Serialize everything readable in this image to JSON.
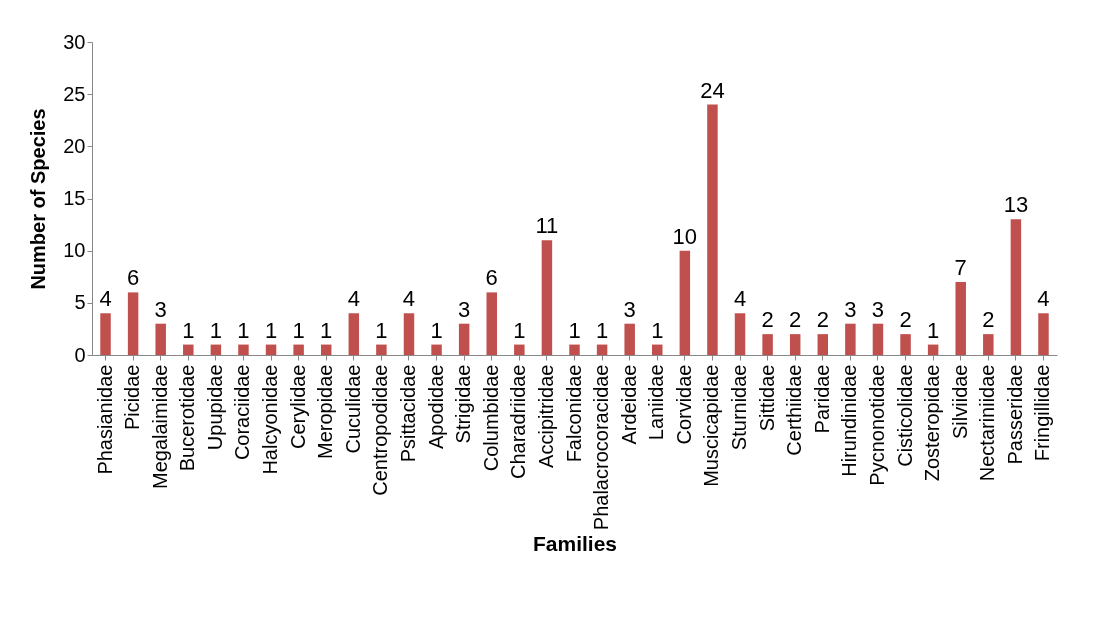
{
  "chart_data": {
    "type": "bar",
    "xlabel": "Families",
    "ylabel": "Number of Species",
    "categories": [
      "Phasianidae",
      "Picidae",
      "Megalaimidae",
      "Bucerotidae",
      "Upupidae",
      "Coraciidae",
      "Halcyonidae",
      "Cerylidae",
      "Meropidae",
      "Cuculidae",
      "Centropodidae",
      "Psittacidae",
      "Apodidae",
      "Strigidae",
      "Columbidae",
      "Charadriidae",
      "Accipitridae",
      "Falconidae",
      "Phalacrocoracidae",
      "Ardeidae",
      "Laniidae",
      "Corvidae",
      "Muscicapidae",
      "Sturnidae",
      "Sittidae",
      "Certhiidae",
      "Paridae",
      "Hirundinidae",
      "Pycnonotidae",
      "Cisticolidae",
      "Zosteropidae",
      "Silviidae",
      "Nectariniidae",
      "Passeridae",
      "Fringillidae"
    ],
    "values": [
      4,
      6,
      3,
      1,
      1,
      1,
      1,
      1,
      1,
      4,
      1,
      4,
      1,
      3,
      6,
      1,
      11,
      1,
      1,
      3,
      1,
      10,
      24,
      4,
      2,
      2,
      2,
      3,
      3,
      2,
      1,
      7,
      2,
      13,
      4
    ],
    "color": "#c0504d",
    "ylim": [
      0,
      30
    ],
    "yticks": [
      0,
      5,
      10,
      15,
      20,
      25,
      30
    ],
    "data_labels": true,
    "grid": false
  }
}
